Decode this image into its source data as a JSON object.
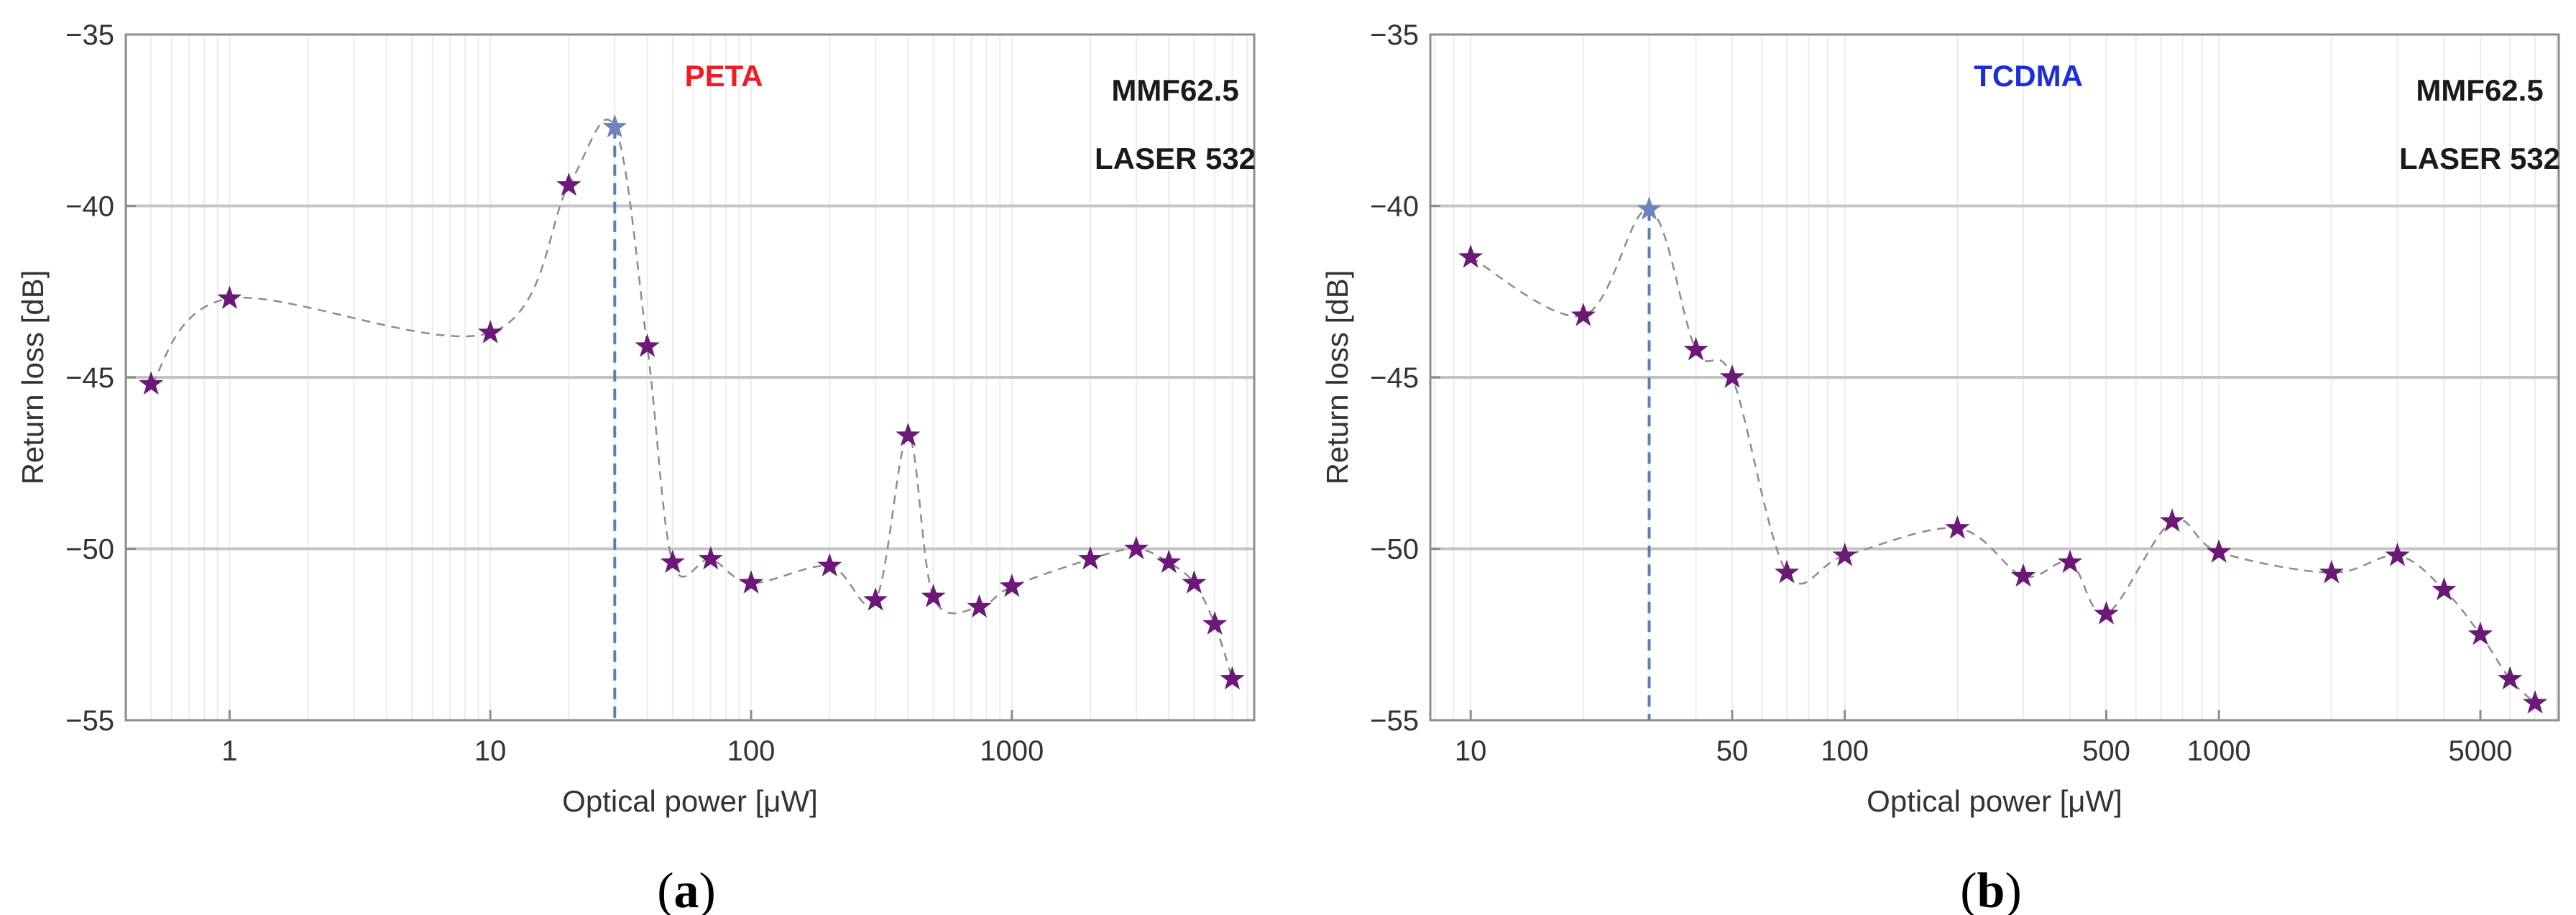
{
  "chart_data": [
    {
      "type": "scatter",
      "panel_label": "(a)",
      "panel_letter": "a",
      "x_scale": "log",
      "xlabel": "Optical power [μW]",
      "ylabel": "Return loss [dB]",
      "xlim": [
        0.4,
        8500
      ],
      "ylim": [
        -55,
        -35
      ],
      "x_ticks": [
        {
          "value": 1,
          "label": "1"
        },
        {
          "value": 10,
          "label": "10"
        },
        {
          "value": 100,
          "label": "100"
        },
        {
          "value": 1000,
          "label": "1000"
        }
      ],
      "y_ticks": [
        {
          "value": -35,
          "label": "−35"
        },
        {
          "value": -40,
          "label": "−40"
        },
        {
          "value": -45,
          "label": "−45"
        },
        {
          "value": -50,
          "label": "−50"
        },
        {
          "value": -55,
          "label": "−55"
        }
      ],
      "grid": true,
      "series": [
        {
          "name": "PETA",
          "marker": "star",
          "color": "#6b1877",
          "x": [
            0.5,
            1,
            10,
            20,
            30,
            40,
            50,
            70,
            100,
            200,
            300,
            400,
            500,
            750,
            1000,
            2000,
            3000,
            4000,
            5000,
            6000,
            7000
          ],
          "y": [
            -45.2,
            -42.7,
            -43.7,
            -39.4,
            -37.7,
            -44.1,
            -50.4,
            -50.3,
            -51.0,
            -50.5,
            -51.5,
            -46.7,
            -51.4,
            -51.7,
            -51.1,
            -50.3,
            -50.0,
            -50.4,
            -51.0,
            -52.2,
            -53.8
          ]
        }
      ],
      "highlight": {
        "x": 30,
        "y": -37.7,
        "color": "#6f84bf"
      },
      "annotations": [
        {
          "text": "PETA",
          "color": "#ee1c24",
          "position": "top-center"
        },
        {
          "text": "MMF62.5",
          "color": "#1a1a1a",
          "position": "top-right"
        },
        {
          "text": "LASER 532",
          "color": "#1a1a1a",
          "position": "top-right"
        }
      ]
    },
    {
      "type": "scatter",
      "panel_label": "(b)",
      "panel_letter": "b",
      "x_scale": "log",
      "xlabel": "Optical power [μW]",
      "ylabel": "Return loss [dB]",
      "xlim": [
        7.8,
        8100
      ],
      "ylim": [
        -55,
        -35
      ],
      "x_ticks": [
        {
          "value": 10,
          "label": "10"
        },
        {
          "value": 50,
          "label": "50"
        },
        {
          "value": 100,
          "label": "100"
        },
        {
          "value": 500,
          "label": "500"
        },
        {
          "value": 1000,
          "label": "1000"
        },
        {
          "value": 5000,
          "label": "5000"
        }
      ],
      "y_ticks": [
        {
          "value": -35,
          "label": "−35"
        },
        {
          "value": -40,
          "label": "−40"
        },
        {
          "value": -45,
          "label": "−45"
        },
        {
          "value": -50,
          "label": "−50"
        },
        {
          "value": -55,
          "label": "−55"
        }
      ],
      "grid": true,
      "series": [
        {
          "name": "TCDMA",
          "marker": "star",
          "color": "#6b1877",
          "x": [
            10,
            20,
            30,
            40,
            50,
            70,
            100,
            200,
            300,
            400,
            500,
            750,
            1000,
            2000,
            3000,
            4000,
            5000,
            6000,
            7000
          ],
          "y": [
            -41.5,
            -43.2,
            -40.1,
            -44.2,
            -45.0,
            -50.7,
            -50.2,
            -49.4,
            -50.8,
            -50.4,
            -51.9,
            -49.2,
            -50.1,
            -50.7,
            -50.2,
            -51.2,
            -52.5,
            -53.8,
            -54.5
          ]
        }
      ],
      "highlight": {
        "x": 30,
        "y": -40.1,
        "color": "#6f84bf"
      },
      "annotations": [
        {
          "text": "TCDMA",
          "color": "#1d2ed8",
          "position": "top-center"
        },
        {
          "text": "MMF62.5",
          "color": "#1a1a1a",
          "position": "top-right"
        },
        {
          "text": "LASER 532",
          "color": "#1a1a1a",
          "position": "top-right"
        }
      ]
    }
  ]
}
